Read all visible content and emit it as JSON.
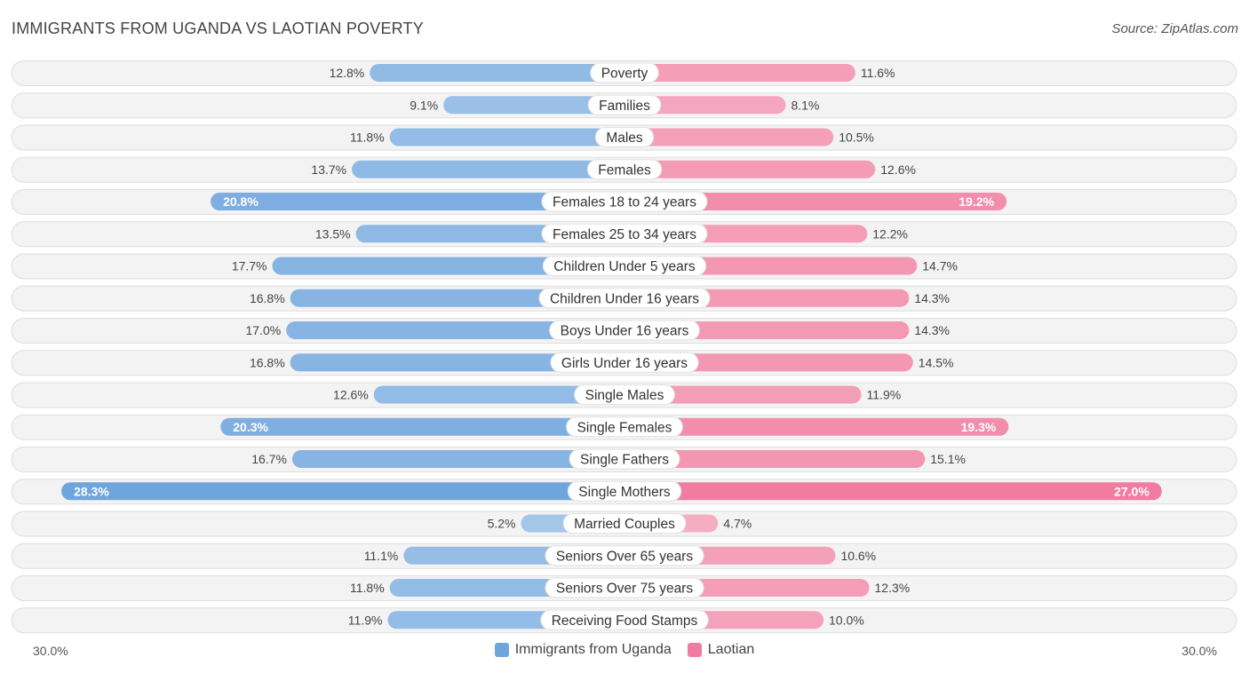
{
  "header": {
    "title": "IMMIGRANTS FROM UGANDA VS LAOTIAN POVERTY",
    "source": "Source: ZipAtlas.com"
  },
  "axis": {
    "left_label": "30.0%",
    "right_label": "30.0%"
  },
  "legend": [
    {
      "label": "Immigrants from Uganda",
      "color": "#6fa5dd"
    },
    {
      "label": "Laotian",
      "color": "#f07ca1"
    }
  ],
  "chart_data": {
    "type": "bar",
    "orientation": "diverging-horizontal",
    "title": "IMMIGRANTS FROM UGANDA VS LAOTIAN POVERTY",
    "xlim": [
      -30,
      30
    ],
    "unit": "%",
    "categories": [
      "Poverty",
      "Families",
      "Males",
      "Females",
      "Females 18 to 24 years",
      "Females 25 to 34 years",
      "Children Under 5 years",
      "Children Under 16 years",
      "Boys Under 16 years",
      "Girls Under 16 years",
      "Single Males",
      "Single Females",
      "Single Fathers",
      "Single Mothers",
      "Married Couples",
      "Seniors Over 65 years",
      "Seniors Over 75 years",
      "Receiving Food Stamps"
    ],
    "series": [
      {
        "name": "Immigrants from Uganda",
        "color": "#6fa5dd",
        "values": [
          12.8,
          9.1,
          11.8,
          13.7,
          20.8,
          13.5,
          17.7,
          16.8,
          17.0,
          16.8,
          12.6,
          20.3,
          16.7,
          28.3,
          5.2,
          11.1,
          11.8,
          11.9
        ],
        "labels": [
          "12.8%",
          "9.1%",
          "11.8%",
          "13.7%",
          "20.8%",
          "13.5%",
          "17.7%",
          "16.8%",
          "17.0%",
          "16.8%",
          "12.6%",
          "20.3%",
          "16.7%",
          "28.3%",
          "5.2%",
          "11.1%",
          "11.8%",
          "11.9%"
        ]
      },
      {
        "name": "Laotian",
        "color": "#f07ca1",
        "values": [
          11.6,
          8.1,
          10.5,
          12.6,
          19.2,
          12.2,
          14.7,
          14.3,
          14.3,
          14.5,
          11.9,
          19.3,
          15.1,
          27.0,
          4.7,
          10.6,
          12.3,
          10.0
        ],
        "labels": [
          "11.6%",
          "8.1%",
          "10.5%",
          "12.6%",
          "19.2%",
          "12.2%",
          "14.7%",
          "14.3%",
          "14.3%",
          "14.5%",
          "11.9%",
          "19.3%",
          "15.1%",
          "27.0%",
          "4.7%",
          "10.6%",
          "12.3%",
          "10.0%"
        ]
      }
    ]
  }
}
